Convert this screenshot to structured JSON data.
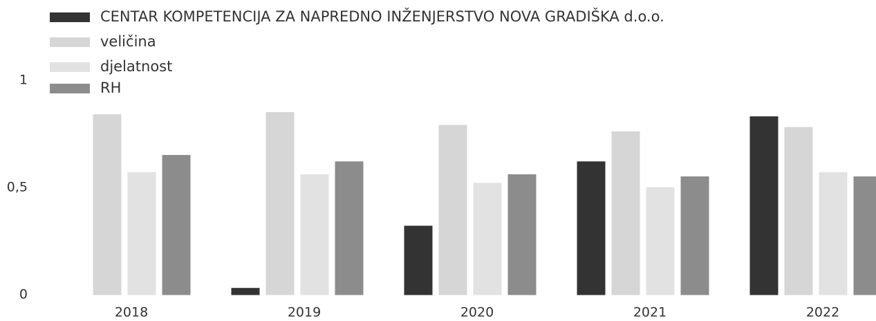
{
  "chart_data": {
    "type": "bar",
    "categories": [
      "2018",
      "2019",
      "2020",
      "2021",
      "2022"
    ],
    "series": [
      {
        "name": "CENTAR KOMPETENCIJA ZA NAPREDNO INŽENJERSTVO NOVA GRADIŠKA d.o.o.",
        "color": "#333333",
        "values": [
          0,
          0.03,
          0.32,
          0.62,
          0.83
        ]
      },
      {
        "name": "veličina",
        "color": "#d6d6d6",
        "values": [
          0.84,
          0.85,
          0.79,
          0.76,
          0.78
        ]
      },
      {
        "name": "djelatnost",
        "color": "#e2e2e2",
        "values": [
          0.57,
          0.56,
          0.52,
          0.5,
          0.57
        ]
      },
      {
        "name": "RH",
        "color": "#8c8c8c",
        "values": [
          0.65,
          0.62,
          0.56,
          0.55,
          0.55
        ]
      }
    ],
    "ylim": [
      0,
      1
    ],
    "yticks": [
      0,
      {
        "value": 0.5,
        "label": "0,5"
      },
      1
    ]
  }
}
